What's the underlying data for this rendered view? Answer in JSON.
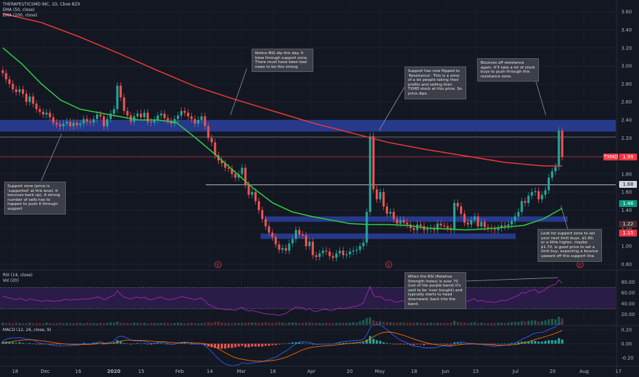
{
  "legend": {
    "symbol": "THERAPEUTICSMD INC, 1D, Cboe BZX",
    "ema50": "EMA (50, close)",
    "ema200": "EMA (200, close)",
    "rsi": "RSI (14, close)",
    "vol": "Vol (20)",
    "macd": "MACD (12, 26, close, 9)"
  },
  "notes": {
    "support_zone": "Support zone (price is 'supported' at this level. It bounces back up). A strong number of sells has to happen to push it through support",
    "big_dip": "Notice BIG dip this day. It blew through support zone. There must have been bad news to be this strong",
    "flipped": "Support has now flipped to 'Resistance'. This is a zone of a lot people taking their profits and selling their TXMD stock at this price. So price dips.",
    "bounces": "Bounces off resistance again. It'll take a lot of stock buys to push through this resistance zone.",
    "limit_buys": "Look for support zone to set your next limit buys. $1.60, or a little higher, maybe $1.70, is good price to set a limit buy, expecting a bounce upward off this support line.",
    "rsi_note": "When the RSI (Relative Strength Index) is over 70 (out of the purple band) it's said to be 'over bought) and typically starts to head downward, back into the band."
  },
  "price_tags": {
    "txmd_symbol": "TXMD",
    "txmd_value": "1.99",
    "t168": "1.68",
    "t146": "1.46",
    "t122": "1.22",
    "t115": "1.15",
    "color_red": "#f23645",
    "color_green": "#089981"
  },
  "markers": {
    "e": "E"
  },
  "chart_data": {
    "type": "candlestick",
    "price_axis_ticks": [
      "3.60",
      "3.40",
      "3.20",
      "3.00",
      "2.80",
      "2.60",
      "2.40",
      "2.20",
      "2.00",
      "1.80",
      "1.60",
      "1.40",
      "1.20",
      "1.00",
      "0.80"
    ],
    "rsi_axis_ticks": [
      "80.00",
      "60.00",
      "40.00",
      "20.00"
    ],
    "macd_axis_ticks": [
      "0.20",
      "0.00",
      "-0.20"
    ],
    "x_ticks": [
      "18",
      "Dec",
      "16",
      "2020",
      "15",
      "Feb",
      "14",
      "Mar",
      "16",
      "Apr",
      "20",
      "May",
      "18",
      "Jun",
      "15",
      "Jul",
      "20",
      "Aug",
      "17"
    ],
    "price_range": [
      0.75,
      3.7
    ],
    "support_zone_price": [
      2.27,
      2.4
    ],
    "support_zone2_price": [
      1.27,
      1.33
    ],
    "support_zone3_price": [
      1.08,
      1.14
    ],
    "horizontal_levels": [
      2.21,
      1.99,
      1.68
    ],
    "ema200_path": [
      [
        0,
        3.58
      ],
      [
        40,
        3.48
      ],
      [
        80,
        3.32
      ],
      [
        120,
        3.14
      ],
      [
        160,
        2.95
      ],
      [
        200,
        2.77
      ],
      [
        240,
        2.63
      ],
      [
        280,
        2.5
      ],
      [
        320,
        2.37
      ],
      [
        360,
        2.26
      ],
      [
        400,
        2.15
      ],
      [
        440,
        2.07
      ],
      [
        480,
        2.0
      ],
      [
        520,
        1.93
      ],
      [
        560,
        1.89
      ],
      [
        580,
        1.89
      ]
    ],
    "ema50_path": [
      [
        0,
        3.2
      ],
      [
        20,
        3.02
      ],
      [
        40,
        2.8
      ],
      [
        60,
        2.62
      ],
      [
        80,
        2.52
      ],
      [
        100,
        2.48
      ],
      [
        120,
        2.44
      ],
      [
        140,
        2.4
      ],
      [
        160,
        2.4
      ],
      [
        180,
        2.37
      ],
      [
        200,
        2.2
      ],
      [
        220,
        2.02
      ],
      [
        240,
        1.83
      ],
      [
        260,
        1.64
      ],
      [
        280,
        1.48
      ],
      [
        300,
        1.38
      ],
      [
        320,
        1.33
      ],
      [
        340,
        1.29
      ],
      [
        360,
        1.25
      ],
      [
        380,
        1.24
      ],
      [
        400,
        1.24
      ],
      [
        420,
        1.23
      ],
      [
        440,
        1.2
      ],
      [
        460,
        1.19
      ],
      [
        480,
        1.18
      ],
      [
        500,
        1.19
      ],
      [
        520,
        1.21
      ],
      [
        540,
        1.23
      ],
      [
        560,
        1.3
      ],
      [
        580,
        1.42
      ]
    ],
    "candle_closes": [
      2.92,
      2.85,
      2.8,
      2.74,
      2.71,
      2.74,
      2.69,
      2.6,
      2.66,
      2.58,
      2.52,
      2.49,
      2.46,
      2.48,
      2.43,
      2.37,
      2.35,
      2.33,
      2.36,
      2.38,
      2.33,
      2.37,
      2.34,
      2.36,
      2.41,
      2.38,
      2.37,
      2.41,
      2.46,
      2.44,
      2.33,
      2.41,
      2.47,
      2.52,
      2.78,
      2.65,
      2.5,
      2.45,
      2.38,
      2.44,
      2.47,
      2.43,
      2.48,
      2.38,
      2.37,
      2.4,
      2.45,
      2.47,
      2.42,
      2.39,
      2.36,
      2.41,
      2.45,
      2.5,
      2.48,
      2.44,
      2.41,
      2.36,
      2.4,
      2.44,
      2.33,
      2.2,
      2.15,
      2.01,
      1.95,
      1.92,
      1.87,
      1.86,
      1.8,
      1.76,
      1.8,
      1.87,
      1.68,
      1.57,
      1.6,
      1.5,
      1.4,
      1.3,
      1.22,
      1.15,
      1.1,
      1.02,
      0.96,
      0.98,
      0.95,
      1.03,
      1.08,
      1.18,
      1.13,
      1.12,
      1.0,
      1.05,
      0.9,
      0.88,
      0.92,
      0.95,
      0.94,
      0.89,
      0.87,
      0.92,
      0.95,
      0.9,
      0.91,
      0.94,
      0.95,
      0.96,
      1.0,
      1.04,
      1.38,
      2.22,
      1.63,
      1.52,
      1.6,
      1.44,
      1.36,
      1.38,
      1.3,
      1.25,
      1.29,
      1.26,
      1.24,
      1.2,
      1.18,
      1.24,
      1.22,
      1.18,
      1.19,
      1.2,
      1.18,
      1.25,
      1.23,
      1.22,
      1.2,
      1.18,
      1.48,
      1.44,
      1.36,
      1.26,
      1.24,
      1.29,
      1.33,
      1.22,
      1.27,
      1.21,
      1.2,
      1.19,
      1.18,
      1.2,
      1.23,
      1.22,
      1.24,
      1.28,
      1.33,
      1.38,
      1.5,
      1.48,
      1.56,
      1.6,
      1.61,
      1.52,
      1.57,
      1.62,
      1.76,
      1.83,
      1.88,
      2.28,
      1.99
    ],
    "rsi_range": [
      0,
      100
    ],
    "rsi_band": [
      30,
      70
    ],
    "rsi_values": [
      54,
      52,
      50,
      49,
      47,
      50,
      48,
      45,
      49,
      47,
      46,
      45,
      44,
      46,
      45,
      44,
      45,
      45,
      47,
      48,
      46,
      48,
      47,
      48,
      49,
      48,
      49,
      50,
      52,
      51,
      47,
      50,
      53,
      55,
      64,
      57,
      52,
      50,
      48,
      51,
      52,
      50,
      52,
      48,
      47,
      49,
      51,
      52,
      49,
      48,
      47,
      49,
      51,
      53,
      52,
      50,
      49,
      47,
      49,
      50,
      45,
      38,
      36,
      32,
      30,
      30,
      28,
      29,
      28,
      27,
      30,
      33,
      28,
      26,
      27,
      25,
      24,
      22,
      21,
      20,
      20,
      19,
      18,
      20,
      21,
      26,
      29,
      34,
      32,
      32,
      28,
      31,
      26,
      25,
      27,
      29,
      29,
      27,
      27,
      30,
      32,
      30,
      31,
      33,
      34,
      35,
      38,
      41,
      56,
      72,
      55,
      52,
      54,
      48,
      46,
      47,
      44,
      42,
      45,
      44,
      43,
      41,
      40,
      44,
      43,
      41,
      42,
      43,
      42,
      46,
      45,
      45,
      44,
      43,
      56,
      53,
      49,
      45,
      44,
      47,
      49,
      44,
      46,
      44,
      43,
      43,
      42,
      44,
      46,
      45,
      47,
      50,
      53,
      55,
      61,
      59,
      63,
      65,
      66,
      60,
      63,
      66,
      72,
      74,
      76,
      84,
      78
    ],
    "volume": [
      6,
      5,
      5,
      4,
      6,
      5,
      4,
      5,
      6,
      4,
      5,
      5,
      4,
      6,
      5,
      4,
      5,
      6,
      4,
      5,
      5,
      4,
      6,
      5,
      4,
      6,
      5,
      5,
      4,
      6,
      5,
      5,
      7,
      6,
      9,
      6,
      5,
      5,
      4,
      6,
      5,
      5,
      6,
      4,
      5,
      5,
      4,
      5,
      6,
      5,
      4,
      5,
      6,
      5,
      4,
      5,
      6,
      5,
      4,
      5,
      6,
      7,
      6,
      8,
      9,
      6,
      5,
      5,
      4,
      6,
      5,
      5,
      6,
      7,
      6,
      7,
      5,
      6,
      7,
      6,
      5,
      6,
      7,
      6,
      5,
      6,
      7,
      6,
      5,
      6,
      7,
      6,
      5,
      6,
      5,
      4,
      6,
      5,
      4,
      5,
      5,
      6,
      5,
      6,
      7,
      6,
      10,
      13,
      18,
      20,
      12,
      9,
      10,
      8,
      7,
      7,
      6,
      6,
      6,
      7,
      5,
      6,
      5,
      6,
      6,
      5,
      5,
      6,
      5,
      6,
      6,
      5,
      5,
      6,
      11,
      8,
      7,
      6,
      5,
      6,
      7,
      5,
      6,
      5,
      5,
      5,
      5,
      6,
      6,
      5,
      6,
      7,
      8,
      8,
      10,
      9,
      11,
      12,
      12,
      9,
      10,
      12,
      15,
      16,
      15,
      22,
      17
    ],
    "macd_range": [
      -0.3,
      0.25
    ],
    "macd_hist": [
      0.03,
      0.03,
      0.02,
      0.02,
      0.01,
      0.02,
      0.01,
      0.0,
      0.01,
      0.0,
      -0.01,
      -0.01,
      -0.01,
      0.0,
      -0.01,
      -0.01,
      -0.01,
      -0.01,
      0.0,
      0.0,
      -0.01,
      0.0,
      0.0,
      0.0,
      0.01,
      0.0,
      0.0,
      0.01,
      0.01,
      0.01,
      -0.01,
      0.0,
      0.01,
      0.02,
      0.05,
      0.03,
      0.01,
      0.0,
      -0.01,
      0.0,
      0.01,
      0.0,
      0.01,
      -0.01,
      -0.01,
      0.0,
      0.01,
      0.01,
      0.0,
      -0.01,
      -0.01,
      0.0,
      0.01,
      0.01,
      0.01,
      0.0,
      -0.01,
      -0.01,
      0.0,
      0.0,
      -0.02,
      -0.04,
      -0.05,
      -0.06,
      -0.07,
      -0.07,
      -0.07,
      -0.06,
      -0.06,
      -0.05,
      -0.04,
      -0.03,
      -0.05,
      -0.05,
      -0.04,
      -0.04,
      -0.04,
      -0.04,
      -0.03,
      -0.03,
      -0.02,
      -0.02,
      -0.01,
      0.0,
      0.0,
      0.01,
      0.02,
      0.02,
      0.02,
      0.01,
      0.0,
      0.0,
      -0.01,
      -0.01,
      0.0,
      0.0,
      0.0,
      0.0,
      0.0,
      0.01,
      0.01,
      0.01,
      0.01,
      0.01,
      0.01,
      0.01,
      0.01,
      0.02,
      0.06,
      0.11,
      0.07,
      0.05,
      0.04,
      0.02,
      0.01,
      0.0,
      -0.01,
      -0.01,
      -0.01,
      -0.01,
      -0.01,
      -0.02,
      -0.02,
      -0.01,
      -0.01,
      -0.02,
      -0.01,
      -0.01,
      -0.01,
      0.0,
      0.0,
      0.0,
      -0.01,
      -0.01,
      0.02,
      0.02,
      0.01,
      0.0,
      -0.01,
      0.0,
      0.0,
      -0.01,
      0.0,
      -0.01,
      -0.01,
      -0.01,
      -0.01,
      0.0,
      0.0,
      0.0,
      0.0,
      0.01,
      0.01,
      0.02,
      0.03,
      0.03,
      0.03,
      0.04,
      0.04,
      0.03,
      0.03,
      0.04,
      0.05,
      0.05,
      0.05,
      0.08,
      0.06
    ]
  }
}
